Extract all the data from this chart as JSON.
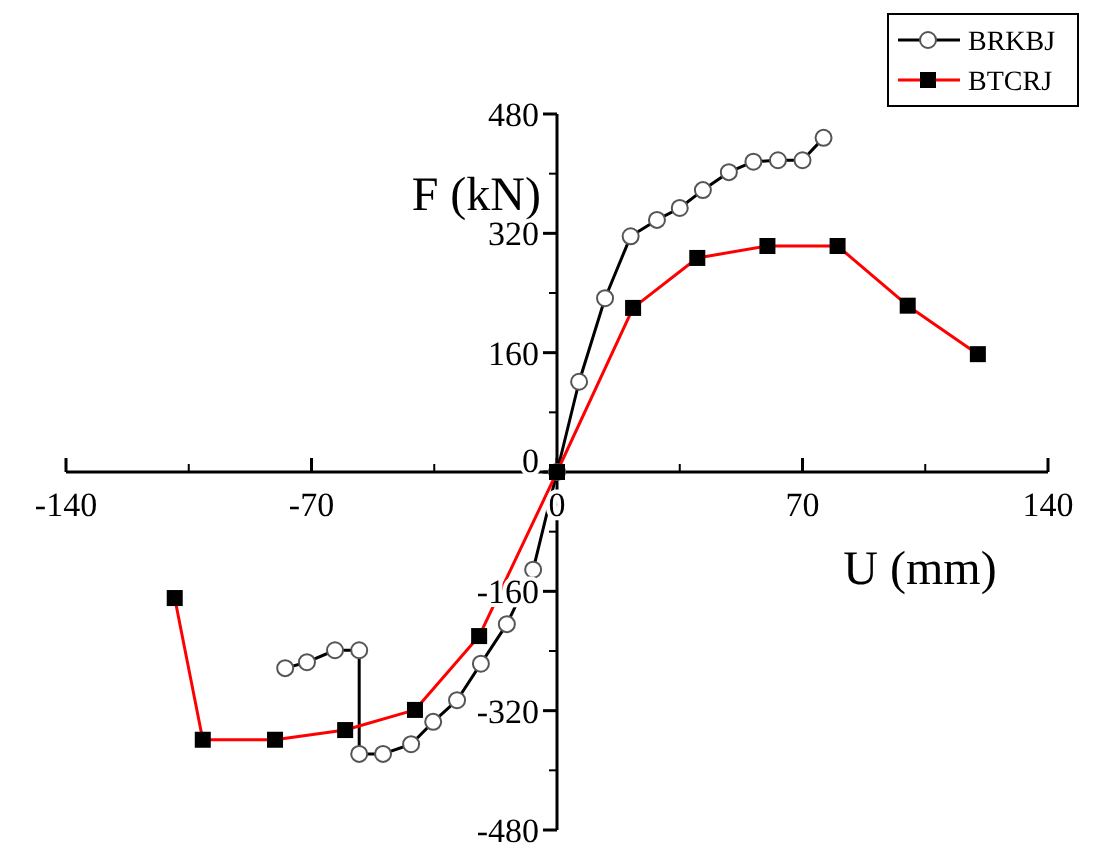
{
  "chart_data": {
    "type": "line",
    "xlabel": "U (mm)",
    "ylabel": "F (kN)",
    "xlim": [
      -140,
      140
    ],
    "xticks": [
      -140,
      -70,
      0,
      70,
      140
    ],
    "ylim": [
      -480,
      480
    ],
    "yticks": [
      -480,
      -320,
      -160,
      0,
      160,
      320,
      480
    ],
    "legend": "top right",
    "grid": false,
    "series": [
      {
        "name": "BRKBJ",
        "color": "#000000",
        "marker": "circle",
        "x": [
          -77.5,
          -71.3,
          -63.3,
          -56.4,
          -56.4,
          -49.6,
          -41.6,
          -35.3,
          -28.5,
          -21.7,
          -14.3,
          -6.8,
          0,
          6.3,
          13.7,
          21,
          28.5,
          35,
          41.6,
          49,
          56,
          63,
          70,
          76
        ],
        "values": [
          -263,
          -255,
          -239,
          -239,
          -378,
          -378,
          -365,
          -335,
          -306,
          -257,
          -204,
          -131,
          0,
          121,
          233,
          316,
          338,
          354,
          378,
          402,
          416,
          418,
          418,
          448
        ]
      },
      {
        "name": "BTCRJ",
        "color": "#ff0000",
        "marker": "square",
        "x": [
          -109,
          -101,
          -80.4,
          -60.4,
          -40.5,
          -22.2,
          0,
          21.7,
          40,
          60,
          80,
          100,
          120
        ],
        "values": [
          -169,
          -359,
          -359,
          -346,
          -319,
          -220,
          0,
          220,
          287,
          303,
          303,
          223,
          158
        ]
      }
    ]
  }
}
